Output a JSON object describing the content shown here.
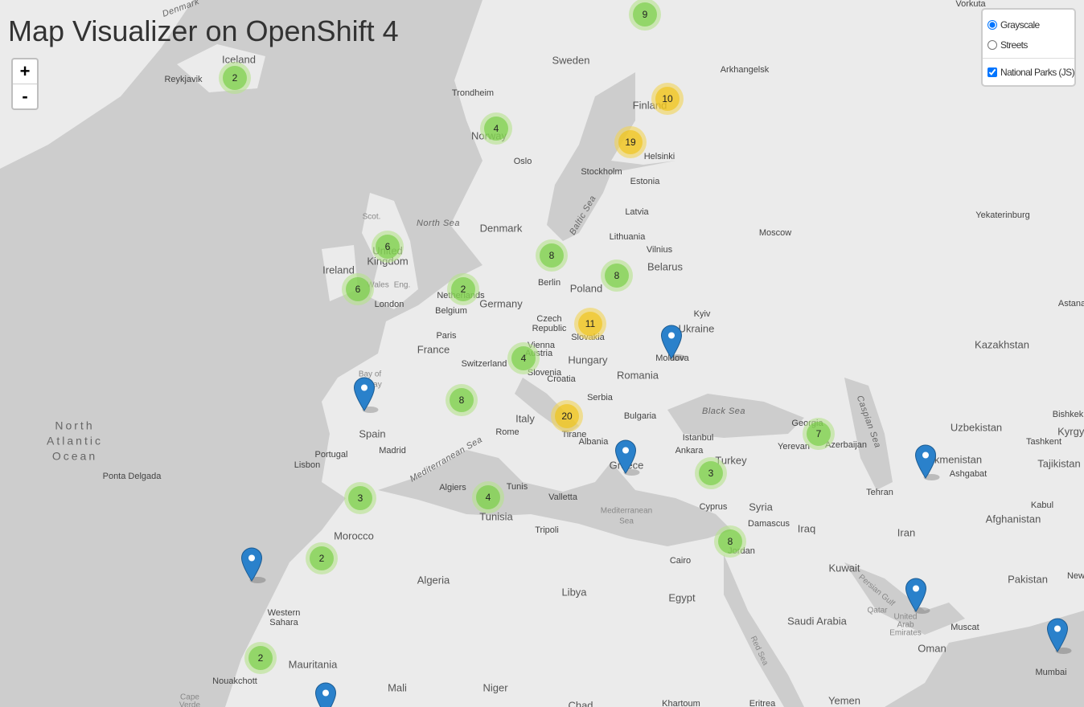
{
  "header": {
    "title": "Map Visualizer on OpenShift 4"
  },
  "zoom": {
    "in": "+",
    "out": "-"
  },
  "layers": {
    "base": [
      {
        "label": "Grayscale",
        "checked": true
      },
      {
        "label": "Streets",
        "checked": false
      }
    ],
    "overlays": [
      {
        "label": "National Parks (JS)",
        "checked": true
      }
    ]
  },
  "clusters": [
    9,
    2,
    10,
    4,
    19,
    6,
    8,
    6,
    2,
    8,
    11,
    4,
    8,
    20,
    7,
    3,
    3,
    4,
    2,
    8,
    2
  ],
  "places": [
    "Denmark",
    "Iceland",
    "Reykjavik",
    "Sweden",
    "Vorkuta",
    "Trondheim",
    "Arkhangelsk",
    "Finland",
    "Norway",
    "Oslo",
    "Helsinki",
    "Stockholm",
    "Estonia",
    "Latvia",
    "Baltic Sea",
    "North Sea",
    "Denmark",
    "Lithuania",
    "Moscow",
    "Yekaterinburg",
    "Vilnius",
    "Belarus",
    "Scot.",
    "United",
    "Kingdom",
    "Ireland",
    "Wales",
    "Eng.",
    "Berlin",
    "Poland",
    "Netherlands",
    "London",
    "Germany",
    "Belgium",
    "Kyiv",
    "Astana",
    "Czech",
    "Republic",
    "Ukraine",
    "Paris",
    "Slovakia",
    "Vienna",
    "Austria",
    "France",
    "Kazakhstan",
    "Moldova",
    "Hungary",
    "Switzerland",
    "Slovenia",
    "Romania",
    "Bay of",
    "Biscay",
    "Croatia",
    "Serbia",
    "Black Sea",
    "Bulgaria",
    "Italy",
    "Bishkek",
    "Georgia",
    "Caspian Sea",
    "Uzbekistan",
    "North",
    "Atlantic",
    "Ocean",
    "Spain",
    "Rome",
    "Tirane",
    "Istanbul",
    "Kyrgyz",
    "Albania",
    "Tashkent",
    "Yerevan",
    "Azerbaijan",
    "Madrid",
    "Ankara",
    "Portugal",
    "Mediterranean Sea",
    "Turkey",
    "Turkmenistan",
    "Tajikistan",
    "Greece",
    "Lisbon",
    "Ashgabat",
    "Ponta Delgada",
    "Algiers",
    "Tunis",
    "Tehran",
    "Valletta",
    "Kabul",
    "Cyprus",
    "Syria",
    "Mediterranean",
    "Sea",
    "Tunisia",
    "Afghanistan",
    "Damascus",
    "Iraq",
    "Tripoli",
    "Iran",
    "Morocco",
    "Jordan",
    "Cairo",
    "Kuwait",
    "Pakistan",
    "Algeria",
    "Persian Gulf",
    "Libya",
    "Egypt",
    "Qatar",
    "Western",
    "Sahara",
    "United",
    "Arab",
    "Emirates",
    "Saudi Arabia",
    "Muscat",
    "Oman",
    "Red Sea",
    "Mauritania",
    "Mumbai",
    "Nouakchott",
    "Mali",
    "Niger",
    "Cape",
    "Verde",
    "Yemen",
    "Khartoum",
    "Eritrea",
    "Chad",
    "New"
  ]
}
